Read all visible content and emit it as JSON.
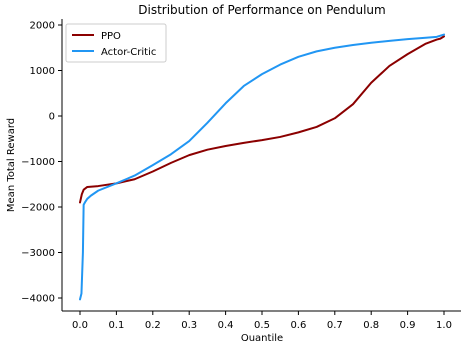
{
  "chart_data": {
    "type": "line",
    "title": "Distribution of Performance on Pendulum",
    "xlabel": "Quantile",
    "ylabel": "Mean Total Reward",
    "xlim": [
      -0.04,
      1.04
    ],
    "ylim": [
      -4300,
      2100
    ],
    "xticks": [
      "0.0",
      "0.1",
      "0.2",
      "0.3",
      "0.4",
      "0.5",
      "0.6",
      "0.7",
      "0.8",
      "0.9",
      "1.0"
    ],
    "yticks": [
      "−4000",
      "−3000",
      "−2000",
      "−1000",
      "0",
      "1000",
      "2000"
    ],
    "grid": false,
    "legend_position": "top-left",
    "series": [
      {
        "name": "PPO",
        "color": "#8b0000",
        "x": [
          0.0,
          0.005,
          0.01,
          0.02,
          0.05,
          0.1,
          0.15,
          0.2,
          0.25,
          0.3,
          0.35,
          0.4,
          0.45,
          0.5,
          0.55,
          0.6,
          0.65,
          0.7,
          0.75,
          0.8,
          0.85,
          0.9,
          0.95,
          0.98,
          0.99,
          1.0
        ],
        "values": [
          -1900,
          -1720,
          -1620,
          -1560,
          -1540,
          -1480,
          -1390,
          -1220,
          -1030,
          -860,
          -740,
          -660,
          -590,
          -530,
          -460,
          -360,
          -240,
          -50,
          260,
          730,
          1100,
          1360,
          1590,
          1680,
          1700,
          1750
        ]
      },
      {
        "name": "Actor-Critic",
        "color": "#2196f3",
        "x": [
          0.0,
          0.004,
          0.008,
          0.01,
          0.015,
          0.02,
          0.03,
          0.05,
          0.1,
          0.15,
          0.2,
          0.25,
          0.3,
          0.35,
          0.4,
          0.45,
          0.5,
          0.55,
          0.6,
          0.65,
          0.7,
          0.75,
          0.8,
          0.85,
          0.9,
          0.95,
          0.98,
          1.0
        ],
        "values": [
          -4030,
          -3900,
          -3000,
          -1950,
          -1880,
          -1820,
          -1750,
          -1640,
          -1480,
          -1310,
          -1080,
          -840,
          -550,
          -150,
          280,
          660,
          920,
          1130,
          1300,
          1420,
          1500,
          1560,
          1610,
          1650,
          1690,
          1720,
          1740,
          1790
        ]
      }
    ]
  }
}
